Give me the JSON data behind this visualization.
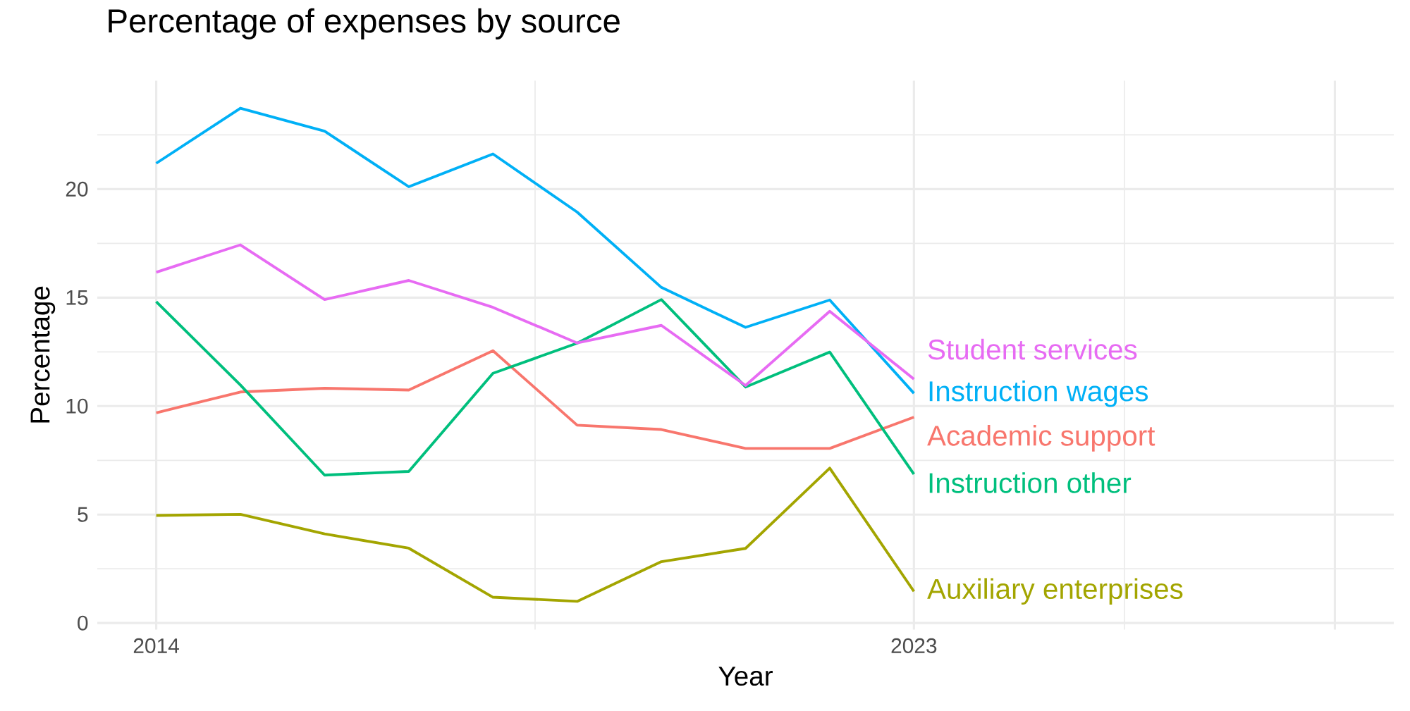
{
  "chart_data": {
    "type": "line",
    "title": "Percentage of expenses by source",
    "xlabel": "Year",
    "ylabel": "Percentage",
    "x": [
      2014,
      2015,
      2016,
      2017,
      2018,
      2019,
      2020,
      2021,
      2022,
      2023
    ],
    "series": [
      {
        "name": "Academic support",
        "color": "#F8766D",
        "values": [
          9.69,
          10.65,
          10.82,
          10.74,
          12.55,
          9.12,
          8.92,
          8.05,
          8.05,
          9.49
        ]
      },
      {
        "name": "Auxiliary enterprises",
        "color": "#A3A500",
        "values": [
          4.96,
          5.01,
          4.11,
          3.45,
          1.19,
          1.0,
          2.83,
          3.44,
          7.14,
          1.46
        ]
      },
      {
        "name": "Instruction other",
        "color": "#00BF7D",
        "values": [
          14.81,
          10.97,
          6.82,
          6.99,
          11.51,
          12.9,
          14.91,
          10.88,
          12.49,
          6.86
        ]
      },
      {
        "name": "Instruction wages",
        "color": "#00B0F6",
        "values": [
          21.19,
          23.73,
          22.67,
          20.11,
          21.62,
          18.94,
          15.47,
          13.63,
          14.89,
          10.59
        ]
      },
      {
        "name": "Student services",
        "color": "#E76BF3",
        "values": [
          16.17,
          17.43,
          14.91,
          15.79,
          14.55,
          12.91,
          13.72,
          10.95,
          14.37,
          11.24
        ]
      }
    ],
    "xlim": [
      2013.3,
      2028.7
    ],
    "ylim": [
      -0.3,
      25
    ],
    "xticks": [
      2014,
      2023,
      {
        "value": 2028,
        "label": null
      }
    ],
    "yticks": [
      0,
      5,
      10,
      15,
      20
    ],
    "grid": true
  }
}
